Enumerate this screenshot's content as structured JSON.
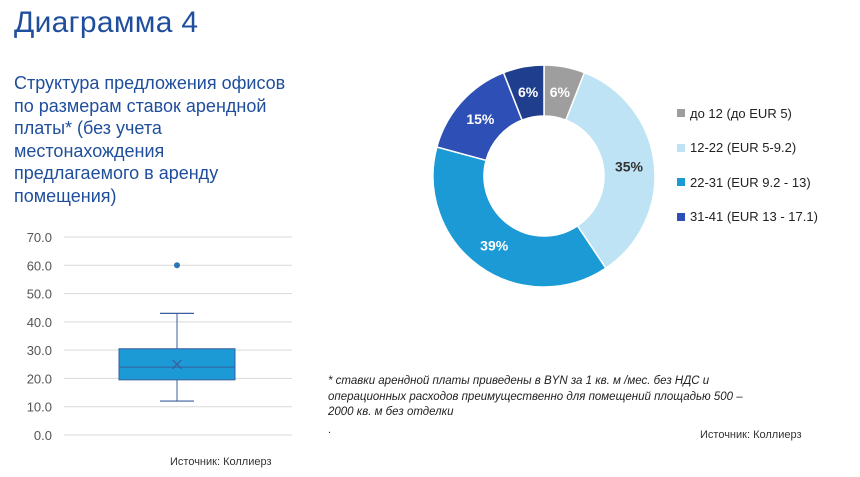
{
  "page": {
    "title": "Диаграмма 4",
    "subtitle_lines": [
      "Структура предложения офисов",
      "по размерам ставок арендной",
      "платы* (без учета",
      "местонахождения",
      "предлагаемого в аренду",
      "помещения)"
    ],
    "source_left": "Источник: Коллиерз",
    "source_right": "Источник: Коллиерз",
    "footnote_lines": [
      "* ставки арендной платы приведены в BYN за 1 кв. м /мес. без НДС и",
      "операционных расходов преимущественно для помещений площадью 500 –",
      "2000 кв. м без отделки"
    ],
    "footnote_dot": "."
  },
  "chart_data": [
    {
      "type": "box",
      "y_ticks": [
        "0.0",
        "10.0",
        "20.0",
        "30.0",
        "40.0",
        "50.0",
        "60.0",
        "70.0"
      ],
      "ylim": [
        0,
        70
      ],
      "min": 12,
      "q1": 19.5,
      "median": 24,
      "mean": 25,
      "q3": 30.5,
      "max": 43,
      "outliers": [
        60
      ],
      "colors": {
        "box": "#1b9ad6",
        "whisker": "#3b5f9e",
        "grid": "#d9d9d9",
        "outlier": "#2e74b5"
      }
    },
    {
      "type": "pie",
      "donut": true,
      "slices": [
        {
          "label": "до 12 (до EUR 5)",
          "value": 6,
          "data_label": "6%",
          "color": "#9e9e9e",
          "label_color": "#ffffff"
        },
        {
          "label": "12-22 (EUR 5-9.2)",
          "value": 35,
          "data_label": "35%",
          "color": "#bde3f5",
          "label_color": "#333333"
        },
        {
          "label": "22-31 (EUR 9.2 - 13)",
          "value": 39,
          "data_label": "39%",
          "color": "#1b9ad6",
          "label_color": "#ffffff"
        },
        {
          "label": "31-41 (EUR 13 - 17.1)",
          "value": 15,
          "data_label": "15%",
          "color": "#2e4fb5",
          "label_color": "#ffffff"
        },
        {
          "label": "",
          "value": 6,
          "data_label": "6%",
          "color": "#1f3e8e",
          "label_color": "#ffffff"
        }
      ],
      "legend_position": "right"
    }
  ]
}
